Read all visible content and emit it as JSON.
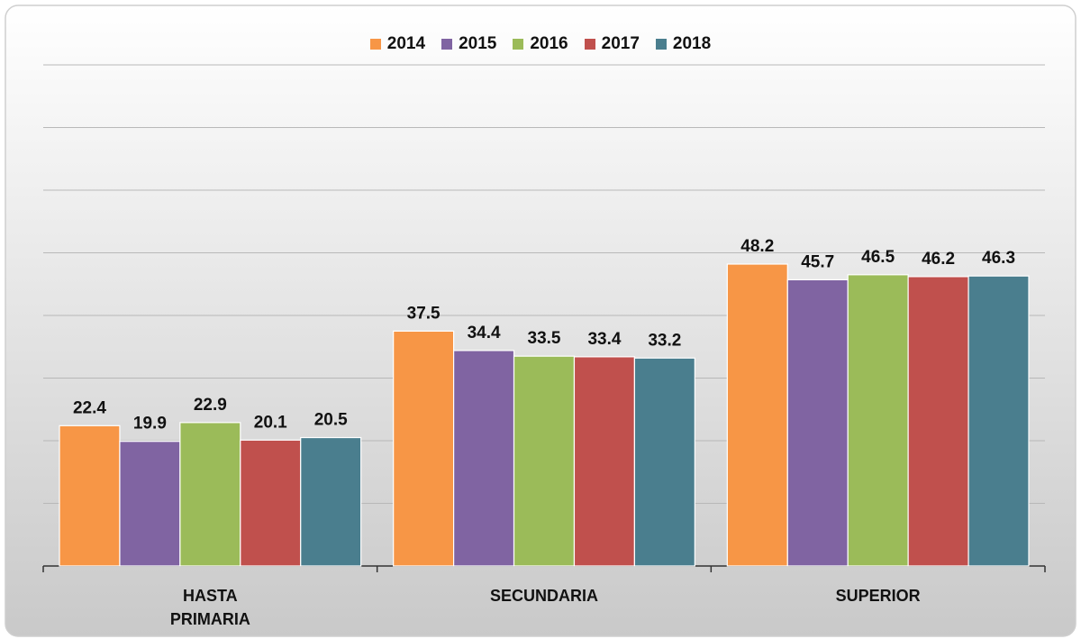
{
  "chart_data": {
    "type": "bar",
    "categories": [
      "HASTA PRIMARIA",
      "SECUNDARIA",
      "SUPERIOR"
    ],
    "series": [
      {
        "name": "2014",
        "color": "#f79646",
        "values": [
          22.4,
          37.5,
          48.2
        ]
      },
      {
        "name": "2015",
        "color": "#8064a2",
        "values": [
          19.9,
          34.4,
          45.7
        ]
      },
      {
        "name": "2016",
        "color": "#9bbb59",
        "values": [
          22.9,
          33.5,
          46.5
        ]
      },
      {
        "name": "2017",
        "color": "#c0504d",
        "values": [
          20.1,
          33.4,
          46.2
        ]
      },
      {
        "name": "2018",
        "color": "#4a7e8e",
        "values": [
          20.5,
          33.2,
          46.3
        ]
      }
    ],
    "ylim": [
      0,
      80
    ],
    "yticks": [
      0,
      10,
      20,
      30,
      40,
      50,
      60,
      70,
      80
    ],
    "grid": true,
    "legend": "top"
  }
}
